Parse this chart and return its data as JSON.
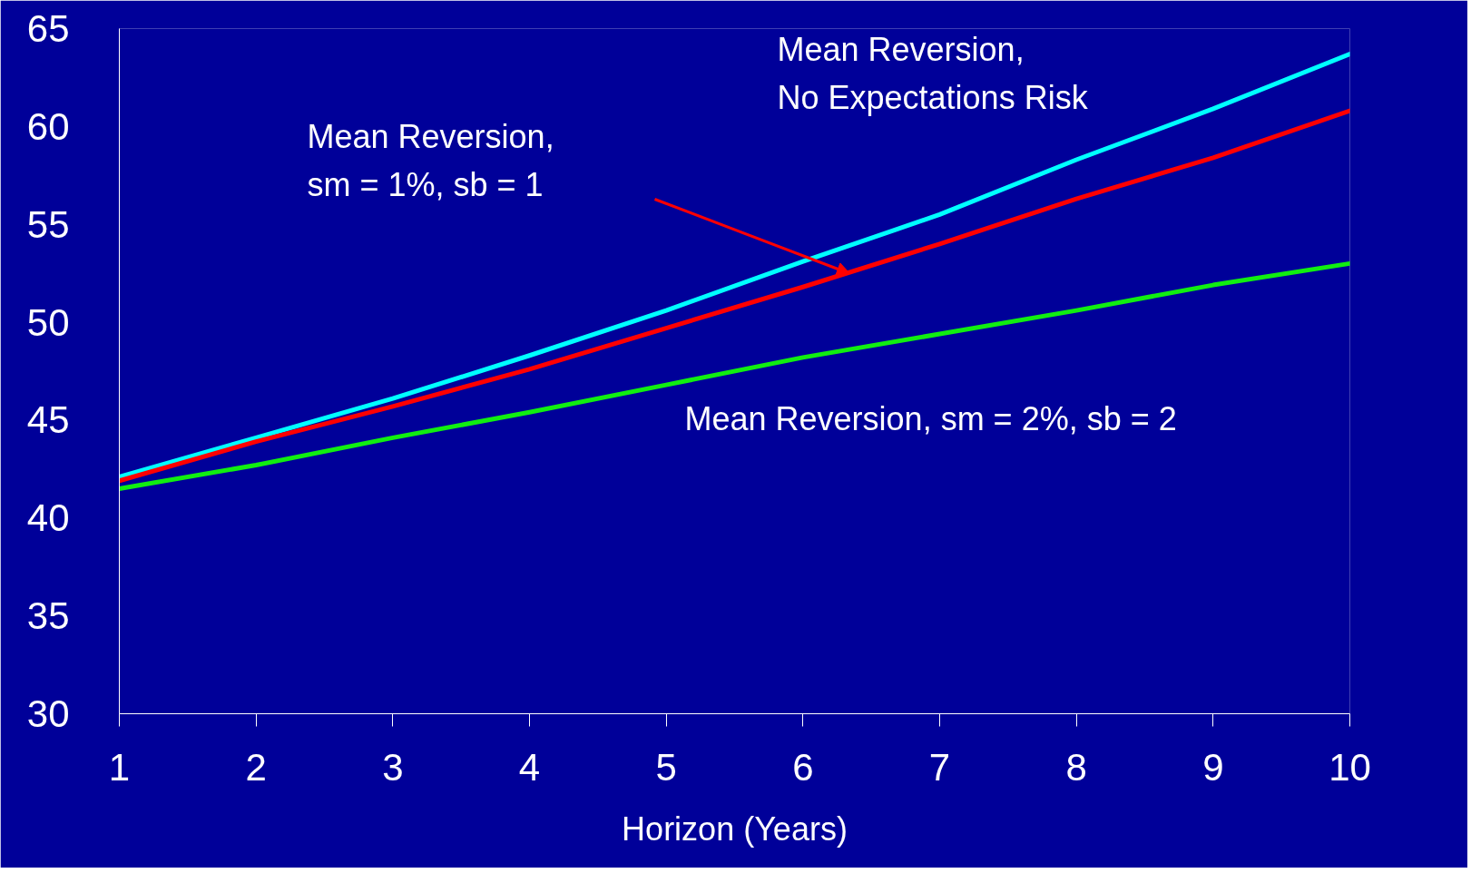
{
  "chart_data": {
    "type": "line",
    "xlabel": "Horizon (Years)",
    "x": [
      1,
      2,
      3,
      4,
      5,
      6,
      7,
      8,
      9,
      10
    ],
    "series": [
      {
        "color": "#00ffff",
        "values": [
          42.1,
          44.1,
          46.1,
          48.3,
          50.6,
          53.1,
          55.5,
          58.3,
          60.9,
          63.7
        ]
      },
      {
        "color": "#ff0000",
        "values": [
          41.9,
          43.9,
          45.7,
          47.6,
          49.7,
          51.8,
          54.0,
          56.3,
          58.4,
          60.8
        ]
      },
      {
        "color": "#11ee11",
        "values": [
          41.5,
          42.7,
          44.1,
          45.4,
          46.8,
          48.2,
          49.4,
          50.6,
          51.9,
          53.0
        ]
      }
    ],
    "annotations": [
      "Mean Reversion,\nNo Expectations Risk",
      "Mean Reversion,\nsm = 1%, sb = 1",
      "Mean Reversion, sm = 2%, sb = 2"
    ],
    "xlim": [
      1,
      10
    ],
    "ylim": [
      30,
      65
    ],
    "xticks": [
      1,
      2,
      3,
      4,
      5,
      6,
      7,
      8,
      9,
      10
    ],
    "yticks": [
      30,
      35,
      40,
      45,
      50,
      55,
      60,
      65
    ],
    "grid": false,
    "marker": "none",
    "line_style": "solid"
  }
}
